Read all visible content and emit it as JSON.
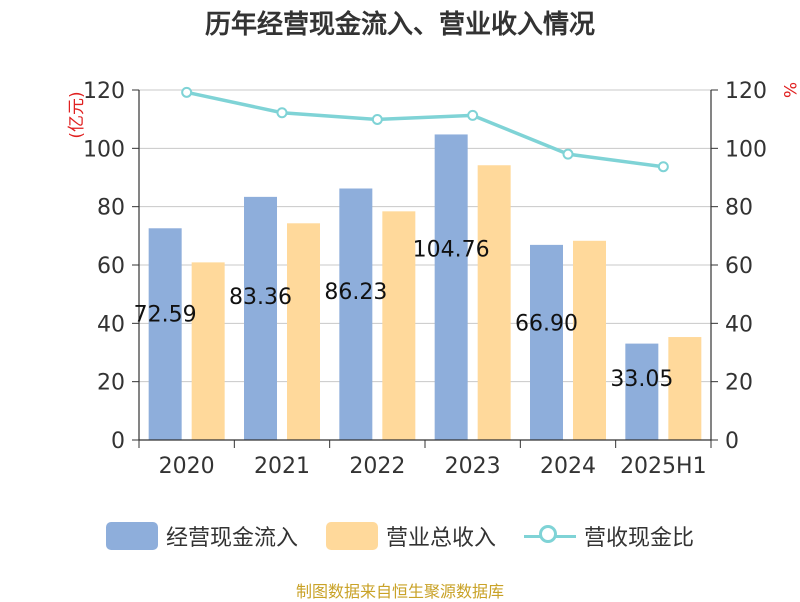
{
  "chart_data": {
    "type": "bar",
    "title": "历年经营现金流入、营业收入情况",
    "categories": [
      "2020",
      "2021",
      "2022",
      "2023",
      "2024",
      "2025H1"
    ],
    "series": [
      {
        "name": "经营现金流入",
        "type": "bar",
        "axis": "left",
        "color": "#8eaedb",
        "values": [
          72.59,
          83.36,
          86.23,
          104.76,
          66.9,
          33.05
        ],
        "labels": [
          "72.59",
          "83.36",
          "86.23",
          "104.76",
          "66.90",
          "33.05"
        ]
      },
      {
        "name": "营业总收入",
        "type": "bar",
        "axis": "left",
        "color": "#ffd99b",
        "values": [
          60.9,
          74.3,
          78.4,
          94.2,
          68.3,
          35.3
        ]
      },
      {
        "name": "营收现金比",
        "type": "line",
        "axis": "right",
        "color": "#7fd3d6",
        "values": [
          119.2,
          112.2,
          109.9,
          111.3,
          98.0,
          93.7
        ]
      }
    ],
    "ylabel": "(亿元)",
    "y2label": "%",
    "ylim": [
      0,
      120
    ],
    "y2lim": [
      0,
      120
    ],
    "yticks": [
      "0",
      "20",
      "40",
      "60",
      "80",
      "100",
      "120"
    ],
    "y2ticks": [
      "0",
      "20",
      "40",
      "60",
      "80",
      "100",
      "120"
    ],
    "grid": true,
    "legend": "bottom"
  },
  "source": "制图数据来自恒生聚源数据库"
}
